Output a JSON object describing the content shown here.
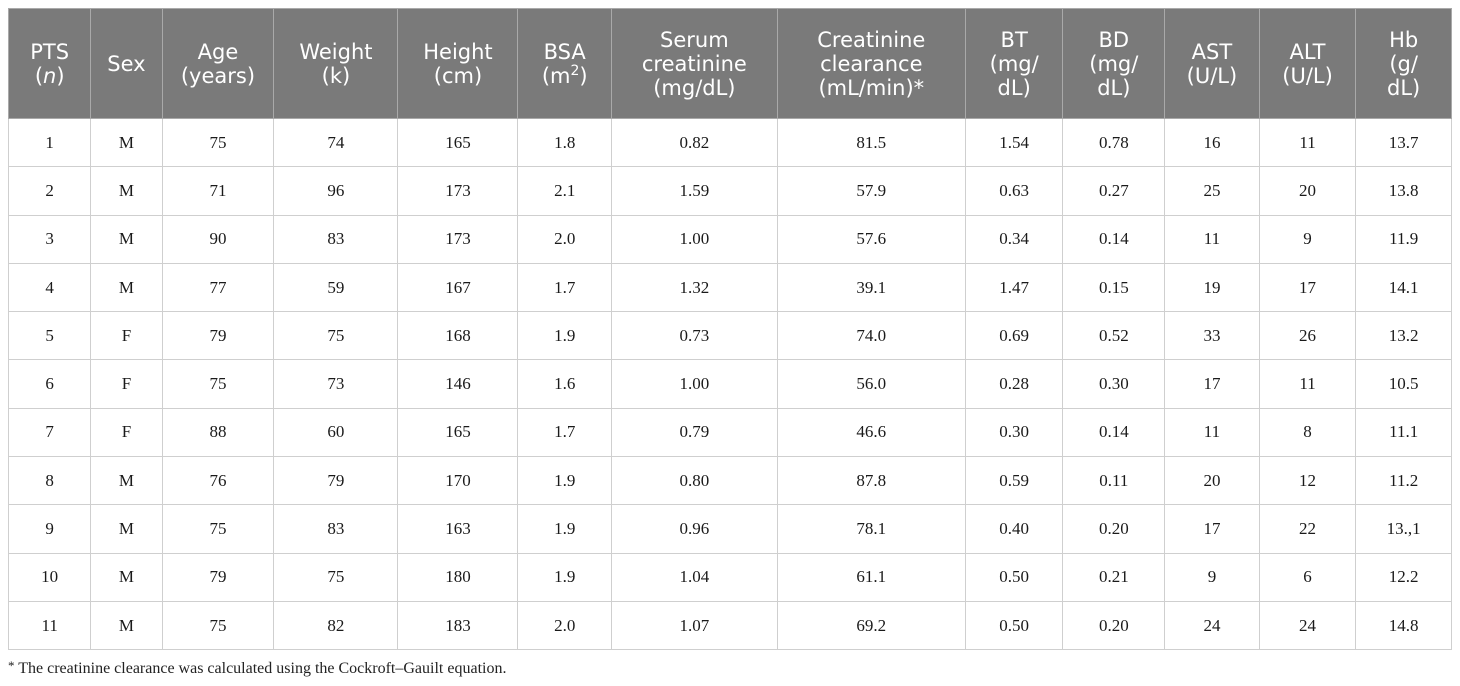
{
  "table": {
    "headers": [
      {
        "lines": [
          "PTS",
          "(n)"
        ],
        "italic_line": 1
      },
      {
        "lines": [
          "Sex"
        ]
      },
      {
        "lines": [
          "Age",
          "(years)"
        ]
      },
      {
        "lines": [
          "Weight",
          "(k)"
        ]
      },
      {
        "lines": [
          "Height",
          "(cm)"
        ]
      },
      {
        "lines": [
          "BSA",
          "(m",
          ")"
        ],
        "sup": "2"
      },
      {
        "lines": [
          "Serum",
          "creatinine",
          "(mg/dL)"
        ]
      },
      {
        "lines": [
          "Creatinine",
          "clearance",
          "(mL/min)*"
        ]
      },
      {
        "lines": [
          "BT",
          "(mg/",
          "dL)"
        ]
      },
      {
        "lines": [
          "BD",
          "(mg/",
          "dL)"
        ]
      },
      {
        "lines": [
          "AST",
          "(U/L)"
        ]
      },
      {
        "lines": [
          "ALT",
          "(U/L)"
        ]
      },
      {
        "lines": [
          "Hb",
          "(g/",
          "dL)"
        ]
      }
    ],
    "rows": [
      [
        "1",
        "M",
        "75",
        "74",
        "165",
        "1.8",
        "0.82",
        "81.5",
        "1.54",
        "0.78",
        "16",
        "11",
        "13.7"
      ],
      [
        "2",
        "M",
        "71",
        "96",
        "173",
        "2.1",
        "1.59",
        "57.9",
        "0.63",
        "0.27",
        "25",
        "20",
        "13.8"
      ],
      [
        "3",
        "M",
        "90",
        "83",
        "173",
        "2.0",
        "1.00",
        "57.6",
        "0.34",
        "0.14",
        "11",
        "9",
        "11.9"
      ],
      [
        "4",
        "M",
        "77",
        "59",
        "167",
        "1.7",
        "1.32",
        "39.1",
        "1.47",
        "0.15",
        "19",
        "17",
        "14.1"
      ],
      [
        "5",
        "F",
        "79",
        "75",
        "168",
        "1.9",
        "0.73",
        "74.0",
        "0.69",
        "0.52",
        "33",
        "26",
        "13.2"
      ],
      [
        "6",
        "F",
        "75",
        "73",
        "146",
        "1.6",
        "1.00",
        "56.0",
        "0.28",
        "0.30",
        "17",
        "11",
        "10.5"
      ],
      [
        "7",
        "F",
        "88",
        "60",
        "165",
        "1.7",
        "0.79",
        "46.6",
        "0.30",
        "0.14",
        "11",
        "8",
        "11.1"
      ],
      [
        "8",
        "M",
        "76",
        "79",
        "170",
        "1.9",
        "0.80",
        "87.8",
        "0.59",
        "0.11",
        "20",
        "12",
        "11.2"
      ],
      [
        "9",
        "M",
        "75",
        "83",
        "163",
        "1.9",
        "0.96",
        "78.1",
        "0.40",
        "0.20",
        "17",
        "22",
        "13.,1"
      ],
      [
        "10",
        "M",
        "79",
        "75",
        "180",
        "1.9",
        "1.04",
        "61.1",
        "0.50",
        "0.21",
        "9",
        "6",
        "12.2"
      ],
      [
        "11",
        "M",
        "75",
        "82",
        "183",
        "2.0",
        "1.07",
        "69.2",
        "0.50",
        "0.20",
        "24",
        "24",
        "14.8"
      ]
    ]
  },
  "footnote": {
    "mark": "*",
    "text": "The creatinine clearance was calculated using the Cockroft–Gauilt equation."
  },
  "colors": {
    "header_background": "#7a7a7a",
    "header_text": "#ffffff"
  }
}
